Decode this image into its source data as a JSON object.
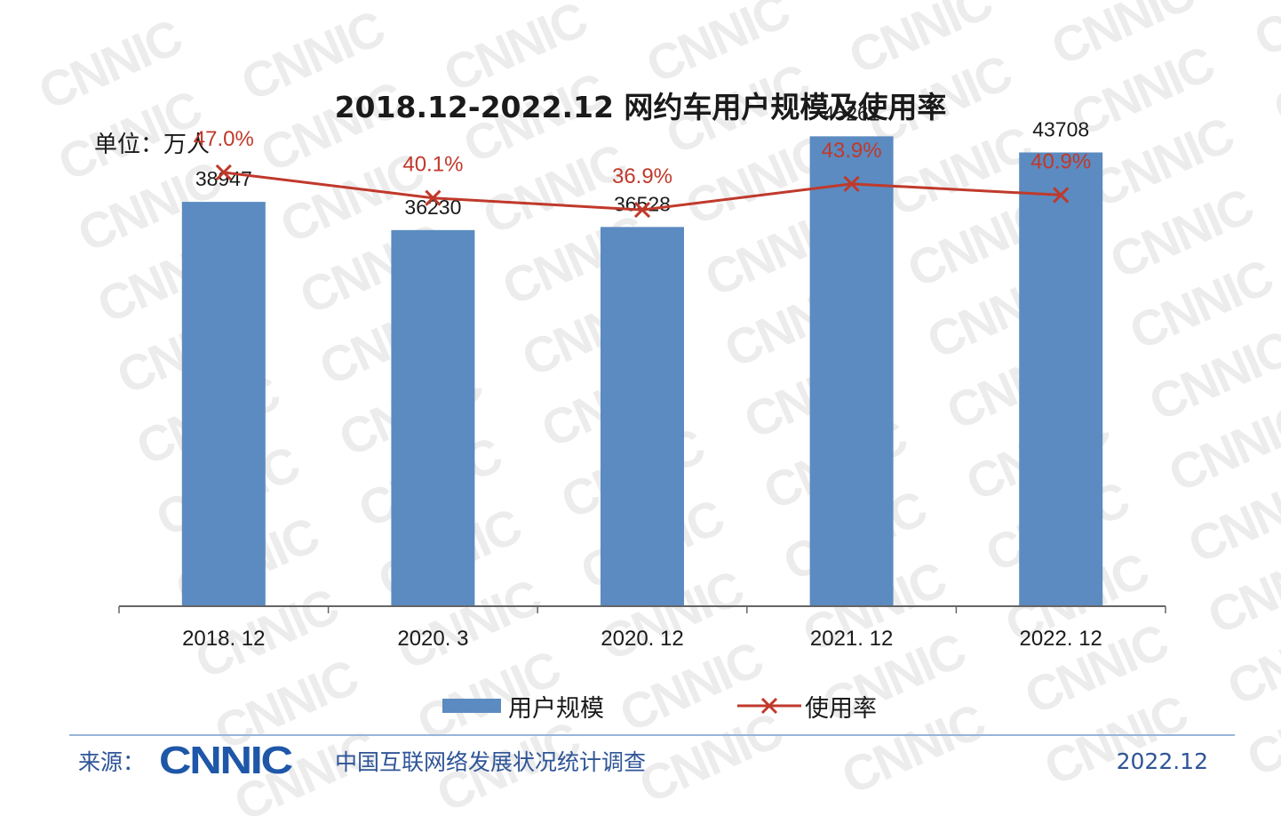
{
  "watermark": "CNNIC",
  "title": "2018.12-2022.12 网约车用户规模及使用率",
  "unit_label": "单位：万人",
  "colors": {
    "bar": "#5b8bc0",
    "line": "#c0392b",
    "axis": "#666666",
    "footer": "#2f5597"
  },
  "chart_data": {
    "type": "bar",
    "categories": [
      "2018. 12",
      "2020. 3",
      "2020. 12",
      "2021. 12",
      "2022. 12"
    ],
    "series": [
      {
        "name": "用户规模",
        "type": "bar",
        "values": [
          38947,
          36230,
          36528,
          45261,
          43708
        ],
        "labels": [
          "38947",
          "36230",
          "36528",
          "45261",
          "43708"
        ]
      },
      {
        "name": "使用率",
        "type": "line",
        "values": [
          47.0,
          40.1,
          36.9,
          43.9,
          40.9
        ],
        "labels": [
          "47.0%",
          "40.1%",
          "36.9%",
          "43.9%",
          "40.9%"
        ]
      }
    ],
    "y_bar_range": [
      0,
      50000
    ],
    "y_line_range": [
      -70,
      70
    ],
    "grid": false,
    "legend_position": "bottom"
  },
  "legend": {
    "bar_label": "用户规模",
    "line_label": "使用率"
  },
  "footer": {
    "source_label": "来源：",
    "logo_text": "CNNIC",
    "org_name": "中国互联网络发展状况统计调查",
    "date": "2022.12"
  }
}
